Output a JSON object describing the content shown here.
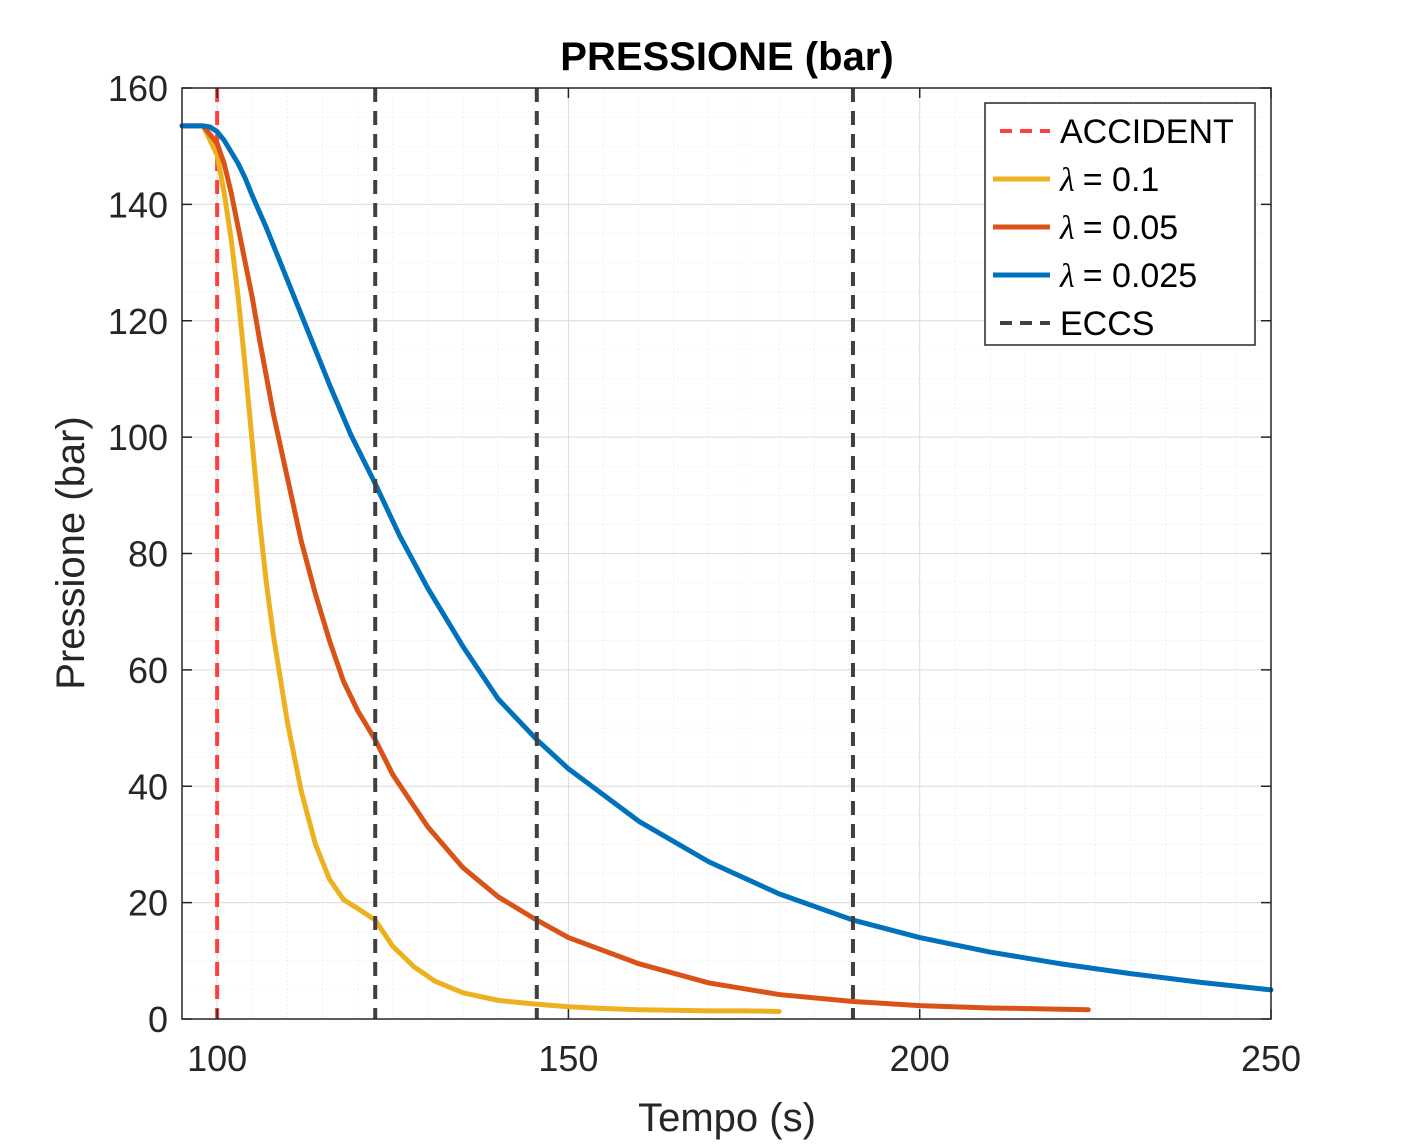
{
  "chart_data": {
    "type": "line",
    "title": "PRESSIONE (bar)",
    "xlabel": "Tempo (s)",
    "ylabel": "Pressione (bar)",
    "xlim": [
      95,
      250
    ],
    "ylim": [
      0,
      160
    ],
    "xticks": [
      100,
      150,
      200,
      250
    ],
    "yticks": [
      0,
      20,
      40,
      60,
      80,
      100,
      120,
      140,
      160
    ],
    "grid": true,
    "minor_grid": true,
    "legend_position": "top-right",
    "accident": {
      "name": "ACCIDENT",
      "x": 100,
      "color": "#FF4040"
    },
    "eccs": {
      "name": "ECCS",
      "x": [
        122.5,
        145.5,
        190.5
      ],
      "color": "#404040"
    },
    "series": [
      {
        "name": "λ = 0.1",
        "lambda_symbol": "λ",
        "lambda_value": "= 0.1",
        "color": "#EDB120",
        "x": [
          95,
          98,
          100,
          101,
          102,
          103,
          104,
          105,
          106,
          107,
          108,
          110,
          112,
          114,
          116,
          118,
          120,
          122.5,
          125,
          128,
          131,
          135,
          140,
          145,
          150,
          155,
          160,
          165,
          170,
          175,
          180
        ],
        "y": [
          153.5,
          153.5,
          148.5,
          142,
          134,
          124,
          112,
          99,
          86,
          75,
          66,
          51,
          39,
          30,
          24,
          20.5,
          19,
          17,
          12.5,
          9,
          6.5,
          4.5,
          3.2,
          2.6,
          2.1,
          1.8,
          1.6,
          1.5,
          1.4,
          1.4,
          1.3
        ]
      },
      {
        "name": "λ = 0.05",
        "lambda_symbol": "λ",
        "lambda_value": "= 0.05",
        "color": "#D95319",
        "x": [
          95,
          98,
          100,
          101,
          102,
          103,
          104,
          105,
          106,
          108,
          110,
          112,
          114,
          116,
          118,
          120,
          122.5,
          125,
          130,
          135,
          140,
          145.5,
          150,
          160,
          170,
          180,
          190.5,
          200,
          210,
          224
        ],
        "y": [
          153.5,
          153.5,
          150.5,
          147,
          142,
          136,
          130,
          124,
          117,
          104,
          93,
          82,
          73,
          65,
          58,
          53,
          48,
          42,
          33,
          26,
          21,
          17,
          14,
          9.5,
          6.2,
          4.2,
          3,
          2.3,
          1.9,
          1.6
        ]
      },
      {
        "name": "λ = 0.025",
        "lambda_symbol": "λ",
        "lambda_value": "= 0.025",
        "color": "#0072BD",
        "x": [
          95,
          98,
          99,
          100,
          101,
          102,
          103,
          104,
          105,
          107,
          110,
          113,
          116,
          119,
          122.5,
          126,
          130,
          135,
          140,
          145.5,
          150,
          160,
          170,
          180,
          190.5,
          200,
          210,
          220,
          230,
          240,
          250
        ],
        "y": [
          153.5,
          153.5,
          153.3,
          152.5,
          151,
          149,
          147,
          144.5,
          141.5,
          136,
          127,
          118,
          109,
          100.5,
          92,
          83,
          74,
          64,
          55,
          48,
          43,
          34,
          27,
          21.5,
          17,
          14,
          11.5,
          9.5,
          7.8,
          6.3,
          5
        ]
      }
    ]
  }
}
